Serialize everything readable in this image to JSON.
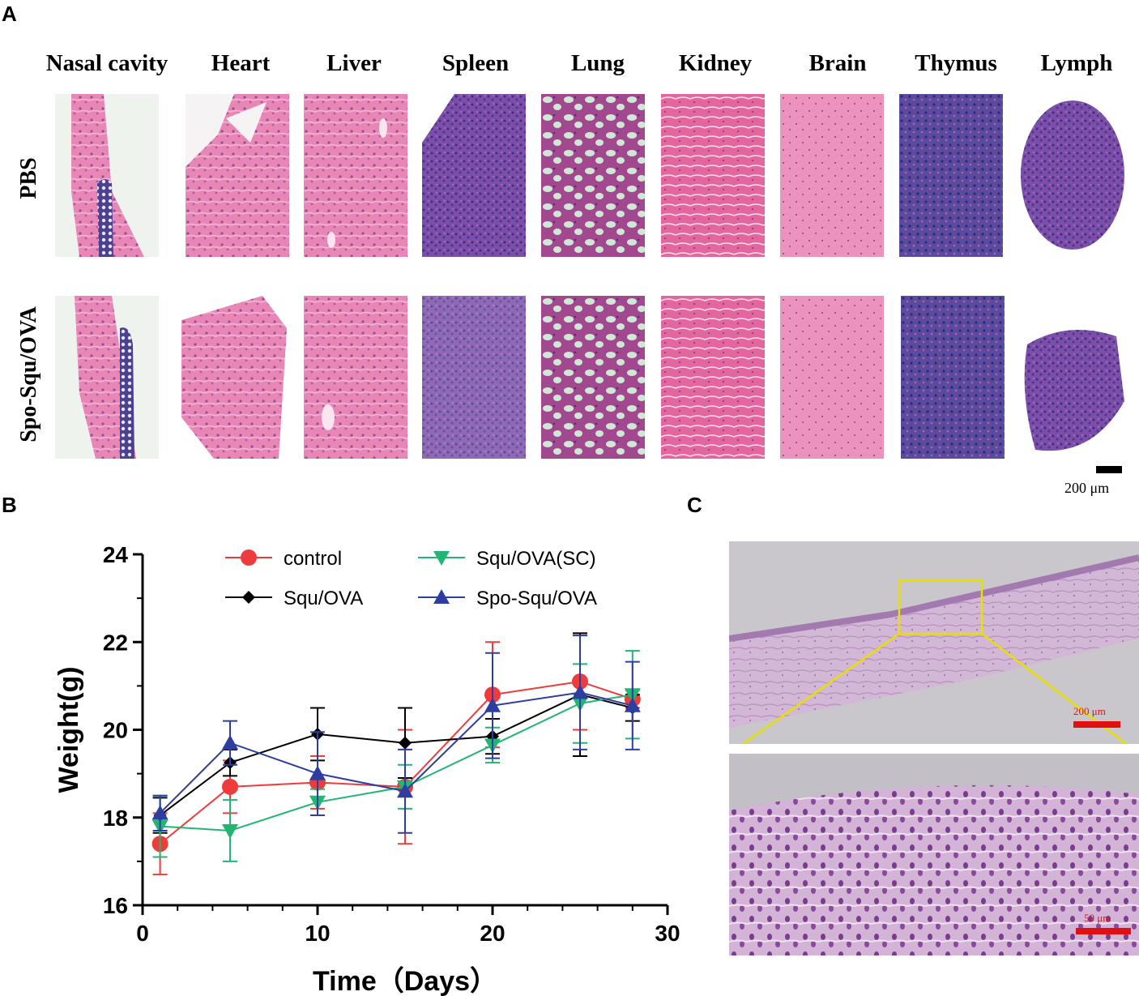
{
  "panels": {
    "a": "A",
    "b": "B",
    "c": "C"
  },
  "panel_a": {
    "organs": [
      "Nasal cavity",
      "Heart",
      "Liver",
      "Spleen",
      "Lung",
      "Kidney",
      "Brain",
      "Thymus",
      "Lymph"
    ],
    "rows": [
      "PBS",
      "Spo-Squ/OVA"
    ],
    "scale_label": "200 μm"
  },
  "panel_c": {
    "top_scale_label": "200 μm",
    "bottom_scale_label": "50 μm",
    "inset_color": "#e8e000",
    "scale_bar_color": "#e01010"
  },
  "chart_data": {
    "type": "line",
    "xlabel": "Time（Days）",
    "ylabel": "Weight(g)",
    "xlim": [
      0,
      30
    ],
    "ylim": [
      16,
      24
    ],
    "xticks": [
      0,
      10,
      20,
      30
    ],
    "yticks": [
      16,
      18,
      20,
      22,
      24
    ],
    "x": [
      1,
      5,
      10,
      15,
      20,
      25,
      28
    ],
    "series": [
      {
        "name": "control",
        "marker": "circle",
        "color": "#ee3b3b",
        "values": [
          17.4,
          18.7,
          18.8,
          18.7,
          20.8,
          21.1,
          20.7
        ],
        "errors": [
          0.7,
          0.6,
          0.6,
          1.3,
          1.2,
          1.1,
          0.2
        ]
      },
      {
        "name": "Squ/OVA",
        "marker": "diamond",
        "color": "#000000",
        "values": [
          18.05,
          19.25,
          19.9,
          19.7,
          19.85,
          20.8,
          20.5
        ],
        "errors": [
          0.4,
          0.3,
          0.6,
          0.8,
          0.4,
          1.4,
          0.3
        ]
      },
      {
        "name": "Squ/OVA(SC)",
        "marker": "triangle-down",
        "color": "#22b573",
        "values": [
          17.8,
          17.7,
          18.35,
          18.7,
          19.65,
          20.6,
          20.8
        ],
        "errors": [
          0.7,
          0.7,
          0.3,
          0.5,
          0.4,
          0.9,
          1.0
        ]
      },
      {
        "name": "Spo-Squ/OVA",
        "marker": "triangle-up",
        "color": "#2e3ea0",
        "values": [
          18.1,
          19.7,
          19.0,
          18.6,
          20.55,
          20.85,
          20.55
        ],
        "errors": [
          0.4,
          0.5,
          0.95,
          0.95,
          1.2,
          1.3,
          1.0
        ]
      }
    ],
    "legend_position": "top"
  }
}
